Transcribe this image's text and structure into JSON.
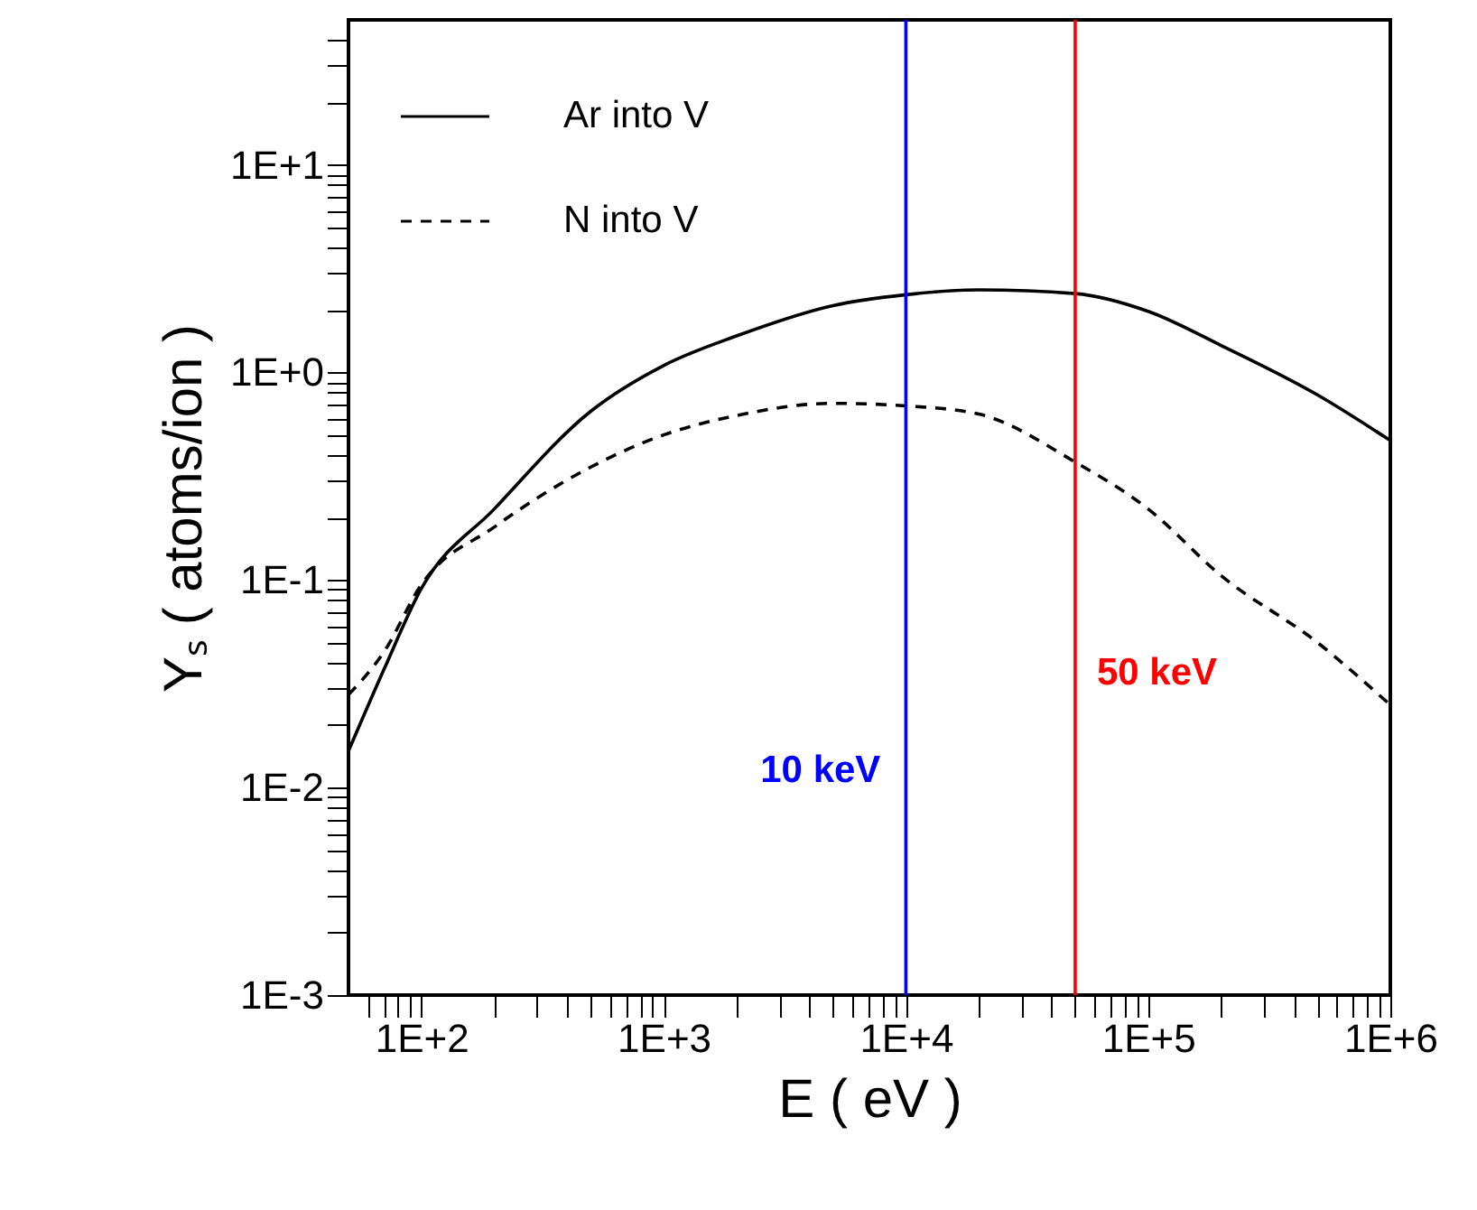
{
  "chart_data": {
    "type": "line",
    "xlabel": "E ( eV )",
    "ylabel": "Yₛ ( atoms/ion )",
    "log": "xy",
    "grid": false,
    "legend": "top left",
    "xlim": [
      50,
      1000000
    ],
    "xticks": [
      {
        "value": 60,
        "label": null
      },
      {
        "value": 70,
        "label": null
      },
      {
        "value": 80,
        "label": null
      },
      {
        "value": 90,
        "label": null
      },
      {
        "value": 100,
        "label": "1E+2"
      },
      {
        "value": 200,
        "label": null
      },
      {
        "value": 300,
        "label": null
      },
      {
        "value": 400,
        "label": null
      },
      {
        "value": 500,
        "label": null
      },
      {
        "value": 600,
        "label": null
      },
      {
        "value": 700,
        "label": null
      },
      {
        "value": 800,
        "label": null
      },
      {
        "value": 900,
        "label": null
      },
      {
        "value": 1000,
        "label": "1E+3"
      },
      {
        "value": 2000,
        "label": null
      },
      {
        "value": 3000,
        "label": null
      },
      {
        "value": 4000,
        "label": null
      },
      {
        "value": 5000,
        "label": null
      },
      {
        "value": 6000,
        "label": null
      },
      {
        "value": 7000,
        "label": null
      },
      {
        "value": 8000,
        "label": null
      },
      {
        "value": 9000,
        "label": null
      },
      {
        "value": 10000,
        "label": "1E+4"
      },
      {
        "value": 20000,
        "label": null
      },
      {
        "value": 30000,
        "label": null
      },
      {
        "value": 40000,
        "label": null
      },
      {
        "value": 50000,
        "label": null
      },
      {
        "value": 60000,
        "label": null
      },
      {
        "value": 70000,
        "label": null
      },
      {
        "value": 80000,
        "label": null
      },
      {
        "value": 90000,
        "label": null
      },
      {
        "value": 100000,
        "label": "1E+5"
      },
      {
        "value": 200000,
        "label": null
      },
      {
        "value": 300000,
        "label": null
      },
      {
        "value": 400000,
        "label": null
      },
      {
        "value": 500000,
        "label": null
      },
      {
        "value": 600000,
        "label": null
      },
      {
        "value": 700000,
        "label": null
      },
      {
        "value": 800000,
        "label": null
      },
      {
        "value": 900000,
        "label": null
      },
      {
        "value": 1000000,
        "label": "1E+6"
      }
    ],
    "ylim": [
      0.001,
      50
    ],
    "yticks": [
      {
        "value": 0.001,
        "label": "1E-3"
      },
      {
        "value": 0.002,
        "label": null
      },
      {
        "value": 0.003,
        "label": null
      },
      {
        "value": 0.004,
        "label": null
      },
      {
        "value": 0.005,
        "label": null
      },
      {
        "value": 0.006,
        "label": null
      },
      {
        "value": 0.007,
        "label": null
      },
      {
        "value": 0.008,
        "label": null
      },
      {
        "value": 0.009,
        "label": null
      },
      {
        "value": 0.01,
        "label": "1E-2"
      },
      {
        "value": 0.02,
        "label": null
      },
      {
        "value": 0.03,
        "label": null
      },
      {
        "value": 0.04,
        "label": null
      },
      {
        "value": 0.05,
        "label": null
      },
      {
        "value": 0.06,
        "label": null
      },
      {
        "value": 0.07,
        "label": null
      },
      {
        "value": 0.08,
        "label": null
      },
      {
        "value": 0.09,
        "label": null
      },
      {
        "value": 0.1,
        "label": "1E-1"
      },
      {
        "value": 0.2,
        "label": null
      },
      {
        "value": 0.3,
        "label": null
      },
      {
        "value": 0.4,
        "label": null
      },
      {
        "value": 0.5,
        "label": null
      },
      {
        "value": 0.6,
        "label": null
      },
      {
        "value": 0.7,
        "label": null
      },
      {
        "value": 0.8,
        "label": null
      },
      {
        "value": 0.9,
        "label": null
      },
      {
        "value": 1,
        "label": "1E+0"
      },
      {
        "value": 2,
        "label": null
      },
      {
        "value": 3,
        "label": null
      },
      {
        "value": 4,
        "label": null
      },
      {
        "value": 5,
        "label": null
      },
      {
        "value": 6,
        "label": null
      },
      {
        "value": 7,
        "label": null
      },
      {
        "value": 8,
        "label": null
      },
      {
        "value": 9,
        "label": null
      },
      {
        "value": 10,
        "label": "1E+1"
      },
      {
        "value": 20,
        "label": null
      },
      {
        "value": 30,
        "label": null
      },
      {
        "value": 40,
        "label": null
      }
    ],
    "x": [
      50,
      70,
      100,
      200,
      500,
      1000,
      2000,
      5000,
      10000,
      20000,
      50000,
      100000,
      200000,
      500000,
      1000000
    ],
    "series": [
      {
        "name": "Ar into V",
        "color": "#000000",
        "line_style": "solid",
        "values": [
          0.015,
          0.037,
          0.091,
          0.22,
          0.65,
          1.08,
          1.5,
          2.1,
          2.37,
          2.5,
          2.4,
          1.97,
          1.35,
          0.78,
          0.47
        ]
      },
      {
        "name": "N  into V",
        "color": "#000000",
        "line_style": "dashed",
        "values": [
          0.028,
          0.045,
          0.095,
          0.18,
          0.35,
          0.5,
          0.62,
          0.71,
          0.69,
          0.63,
          0.37,
          0.22,
          0.105,
          0.05,
          0.025
        ]
      }
    ],
    "ref_lines": [
      {
        "axis": "x",
        "value": 10000,
        "label": "10 keV",
        "color": "#0000ff"
      },
      {
        "axis": "x",
        "value": 50000,
        "label": "50 keV",
        "color": "#ff0000"
      }
    ]
  }
}
